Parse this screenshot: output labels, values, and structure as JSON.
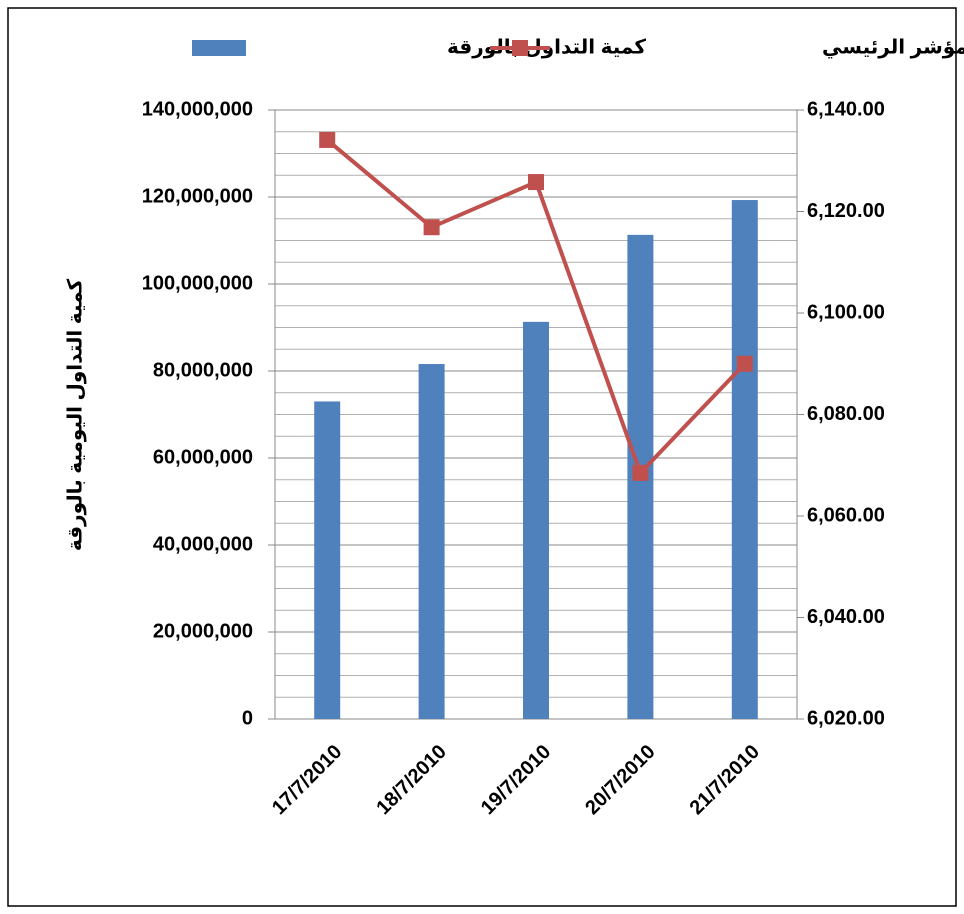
{
  "chart_data": {
    "type": "bar-line",
    "y_axis_label": "كمية التداول اليومية بالورقة",
    "categories": [
      "17/7/2010",
      "18/7/2010",
      "19/7/2010",
      "20/7/2010",
      "21/7/2010"
    ],
    "series": [
      {
        "name": "كمية التداول بالورقة",
        "type": "bar",
        "color": "#4f81bd",
        "values": [
          73000000,
          81600000,
          91300000,
          111300000,
          119300000
        ]
      },
      {
        "name": "إغلاقات المؤشر الرئيسي",
        "type": "line",
        "axis": "y2",
        "color": "#c0504d",
        "values": [
          6134.1,
          6116.9,
          6125.8,
          6068.5,
          6090
        ]
      }
    ],
    "ylim": [
      0,
      140000000
    ],
    "yticks": [
      {
        "value": 0,
        "label": "0"
      },
      {
        "value": 20000000,
        "label": "20,000,000"
      },
      {
        "value": 40000000,
        "label": "40,000,000"
      },
      {
        "value": 60000000,
        "label": "60,000,000"
      },
      {
        "value": 80000000,
        "label": "80,000,000"
      },
      {
        "value": 100000000,
        "label": "100,000,000"
      },
      {
        "value": 120000000,
        "label": "120,000,000"
      },
      {
        "value": 140000000,
        "label": "140,000,000"
      }
    ],
    "y2lim": [
      6020,
      6140
    ],
    "y2ticks": [
      {
        "value": 6020,
        "label": "6,020.00"
      },
      {
        "value": 6040,
        "label": "6,040.00"
      },
      {
        "value": 6060,
        "label": "6,060.00"
      },
      {
        "value": 6080,
        "label": "6,080.00"
      },
      {
        "value": 6100,
        "label": "6,100.00"
      },
      {
        "value": 6120,
        "label": "6,120.00"
      },
      {
        "value": 6140,
        "label": "6,140.00"
      }
    ],
    "grid": true,
    "grid_minor_step": 5000000,
    "legend": "top"
  }
}
